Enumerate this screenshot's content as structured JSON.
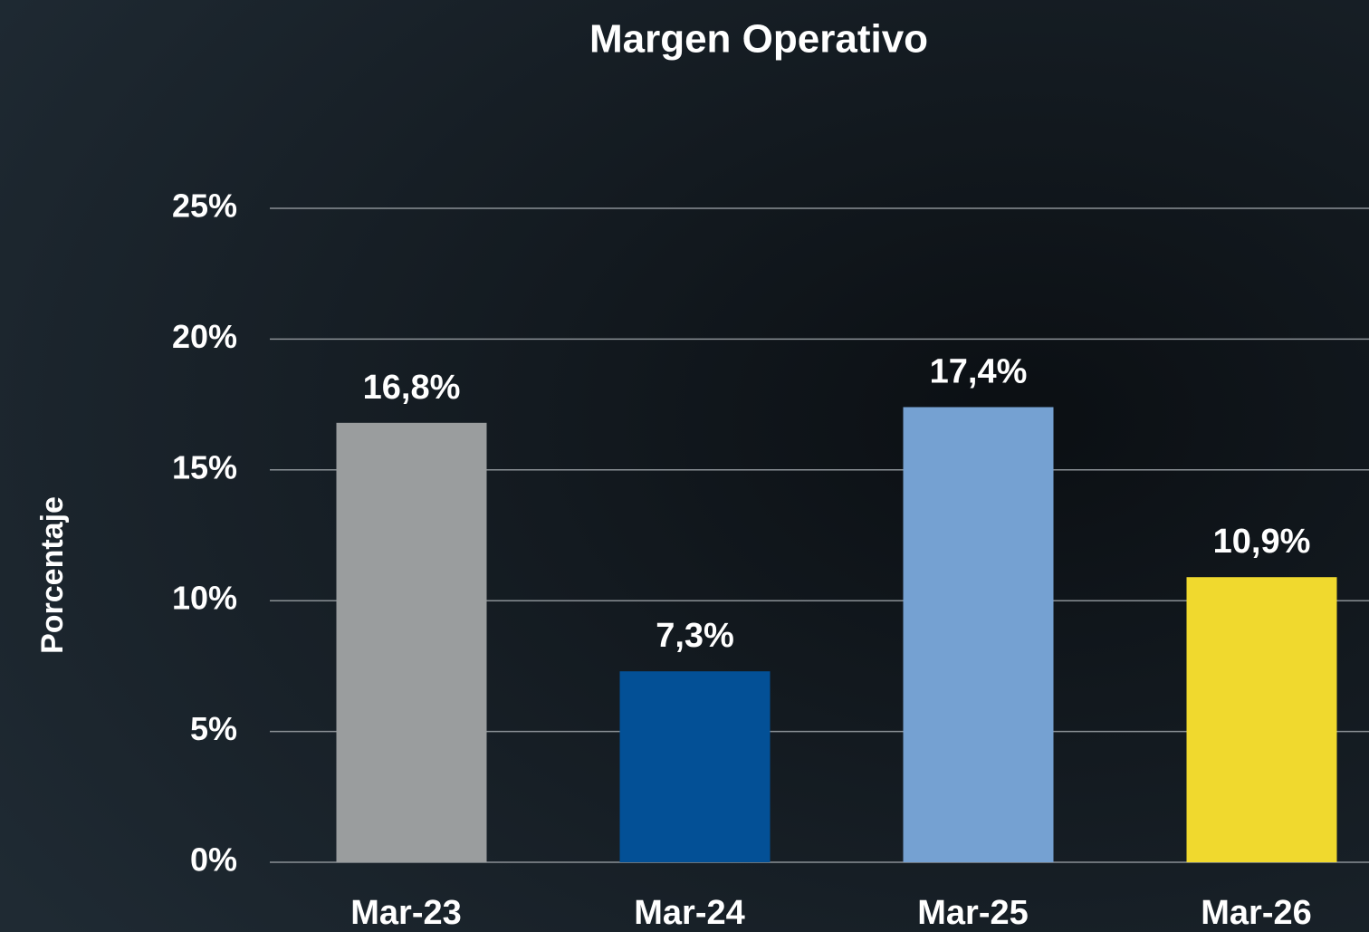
{
  "chart_data": {
    "type": "bar",
    "title": "Margen Operativo",
    "y_label": "Porcentaje",
    "categories": [
      "Mar-23",
      "Mar-24",
      "Mar-25",
      "Mar-26"
    ],
    "values": [
      16.8,
      7.3,
      17.4,
      10.9
    ],
    "value_labels": [
      "16,8%",
      "7,3%",
      "17,4%",
      "10,9%"
    ],
    "colors": [
      "#9a9d9e",
      "#035096",
      "#75a1d2",
      "#f0d92e"
    ],
    "ylim": [
      0,
      25
    ],
    "yticks": [
      {
        "value": 0,
        "label": "0%"
      },
      {
        "value": 5,
        "label": "5%"
      },
      {
        "value": 10,
        "label": "10%"
      },
      {
        "value": 15,
        "label": "15%"
      },
      {
        "value": 20,
        "label": "20%"
      },
      {
        "value": 25,
        "label": "25%"
      }
    ],
    "grid": true
  }
}
